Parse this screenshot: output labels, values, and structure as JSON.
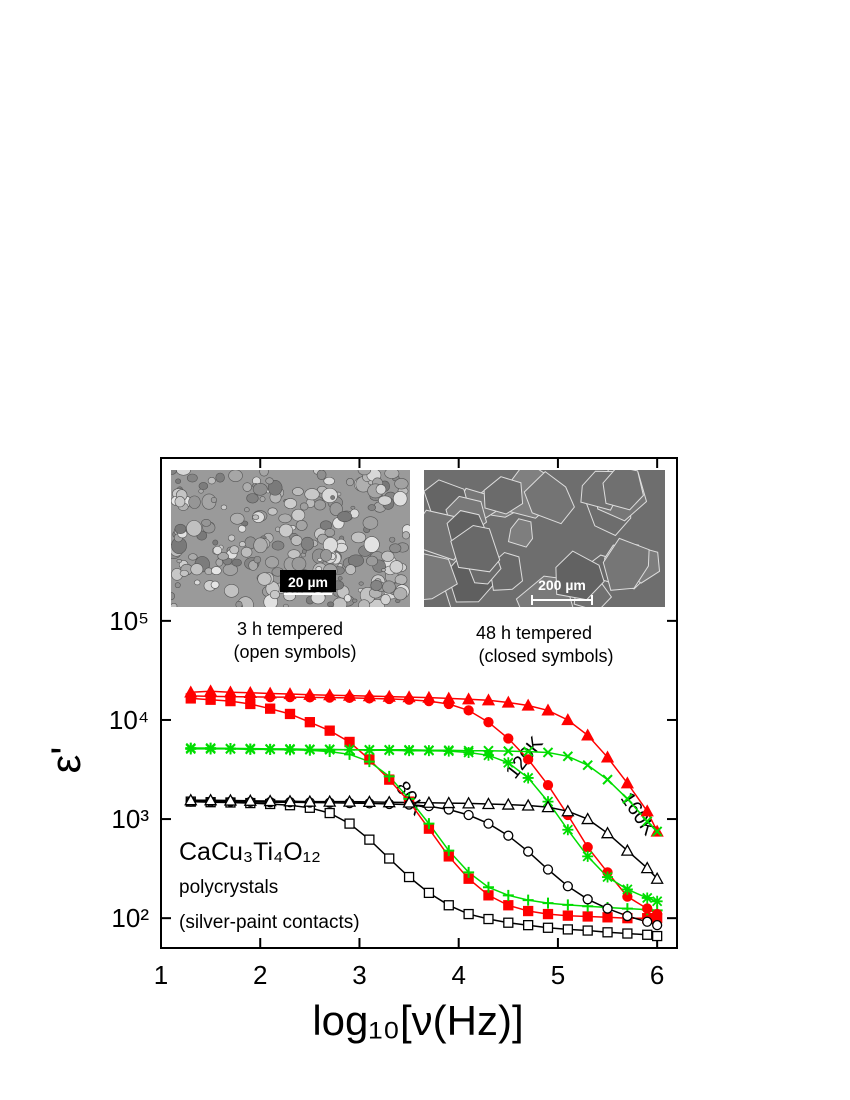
{
  "chart_data": {
    "type": "line",
    "x_label": "log₁₀[ν(Hz)]",
    "y_label": "ε'",
    "xlim": [
      1,
      6.2
    ],
    "xticks": [
      1,
      2,
      3,
      4,
      5,
      6
    ],
    "ylim": [
      50,
      4400000
    ],
    "yticks": [
      {
        "value": 100,
        "label": "10²"
      },
      {
        "value": 1000,
        "label": "10³"
      },
      {
        "value": 10000,
        "label": "10⁴"
      },
      {
        "value": 100000,
        "label": "10⁵"
      }
    ],
    "y_scale": "log",
    "x": [
      1.3,
      1.5,
      1.7,
      1.9,
      2.1,
      2.3,
      2.5,
      2.7,
      2.9,
      3.1,
      3.3,
      3.5,
      3.7,
      3.9,
      4.1,
      4.3,
      4.5,
      4.7,
      4.9,
      5.1,
      5.3,
      5.5,
      5.7,
      5.9,
      6.0
    ],
    "series": [
      {
        "color": "#000000",
        "marker": "square",
        "filled": false,
        "values": [
          1500,
          1480,
          1470,
          1450,
          1420,
          1380,
          1300,
          1150,
          900,
          620,
          400,
          260,
          180,
          135,
          110,
          98,
          90,
          85,
          80,
          77,
          75,
          72,
          70,
          68,
          66
        ]
      },
      {
        "color": "#ff0000",
        "marker": "square",
        "filled": true,
        "values": [
          16500,
          16000,
          15500,
          14500,
          13000,
          11500,
          9500,
          7800,
          6000,
          4000,
          2500,
          1500,
          800,
          420,
          250,
          170,
          135,
          118,
          110,
          106,
          104,
          102,
          100,
          100,
          100
        ]
      },
      {
        "color": "#00dd00",
        "marker": "plus",
        "filled": false,
        "values": [
          5200,
          5200,
          5150,
          5100,
          5050,
          5000,
          4950,
          4800,
          4500,
          3800,
          2700,
          1600,
          900,
          480,
          290,
          205,
          170,
          152,
          142,
          136,
          132,
          128,
          125,
          122,
          120
        ]
      },
      {
        "color": "#000000",
        "marker": "circle",
        "filled": false,
        "values": [
          1500,
          1500,
          1500,
          1490,
          1480,
          1480,
          1470,
          1460,
          1450,
          1440,
          1420,
          1400,
          1350,
          1250,
          1100,
          900,
          680,
          470,
          310,
          210,
          155,
          125,
          105,
          92,
          85
        ]
      },
      {
        "color": "#ff0000",
        "marker": "circle",
        "filled": true,
        "values": [
          17500,
          17300,
          17200,
          17100,
          17000,
          17000,
          16900,
          16800,
          16700,
          16500,
          16300,
          16000,
          15500,
          14500,
          12500,
          9500,
          6500,
          4000,
          2200,
          1100,
          520,
          290,
          165,
          125,
          110
        ]
      },
      {
        "color": "#00dd00",
        "marker": "star",
        "filled": false,
        "values": [
          5100,
          5100,
          5100,
          5050,
          5050,
          5000,
          5000,
          5000,
          5000,
          4950,
          4950,
          4900,
          4900,
          4850,
          4700,
          4400,
          3700,
          2600,
          1500,
          780,
          420,
          260,
          195,
          160,
          148
        ]
      },
      {
        "color": "#000000",
        "marker": "triangle",
        "filled": false,
        "values": [
          1550,
          1550,
          1540,
          1530,
          1520,
          1510,
          1500,
          1500,
          1500,
          1490,
          1480,
          1470,
          1460,
          1450,
          1440,
          1420,
          1400,
          1370,
          1320,
          1200,
          1000,
          720,
          480,
          320,
          250
        ]
      },
      {
        "color": "#ff0000",
        "marker": "triangle",
        "filled": true,
        "values": [
          19000,
          19500,
          19000,
          18800,
          18500,
          18300,
          18000,
          17800,
          17600,
          17400,
          17200,
          17000,
          16800,
          16500,
          16200,
          15800,
          15000,
          14000,
          12500,
          10000,
          7000,
          4200,
          2300,
          1200,
          750
        ]
      },
      {
        "color": "#00dd00",
        "marker": "x",
        "filled": false,
        "values": [
          5200,
          5200,
          5150,
          5150,
          5100,
          5100,
          5050,
          5050,
          5000,
          5000,
          5000,
          5000,
          4950,
          4950,
          4900,
          4900,
          4850,
          4800,
          4700,
          4300,
          3500,
          2500,
          1600,
          950,
          750
        ]
      }
    ],
    "annotations": {
      "temperatures": [
        "80K",
        "120K",
        "160K"
      ],
      "compound": "CaCu₃Ti₄O₁₂",
      "sample": "polycrystals",
      "contacts": "(silver-paint contacts)",
      "inset_left_scale": "20 µm",
      "inset_left_caption": [
        "3 h tempered",
        "(open symbols)"
      ],
      "inset_right_scale": "200 µm",
      "inset_right_caption": [
        "48 h tempered",
        "(closed symbols)"
      ]
    }
  }
}
